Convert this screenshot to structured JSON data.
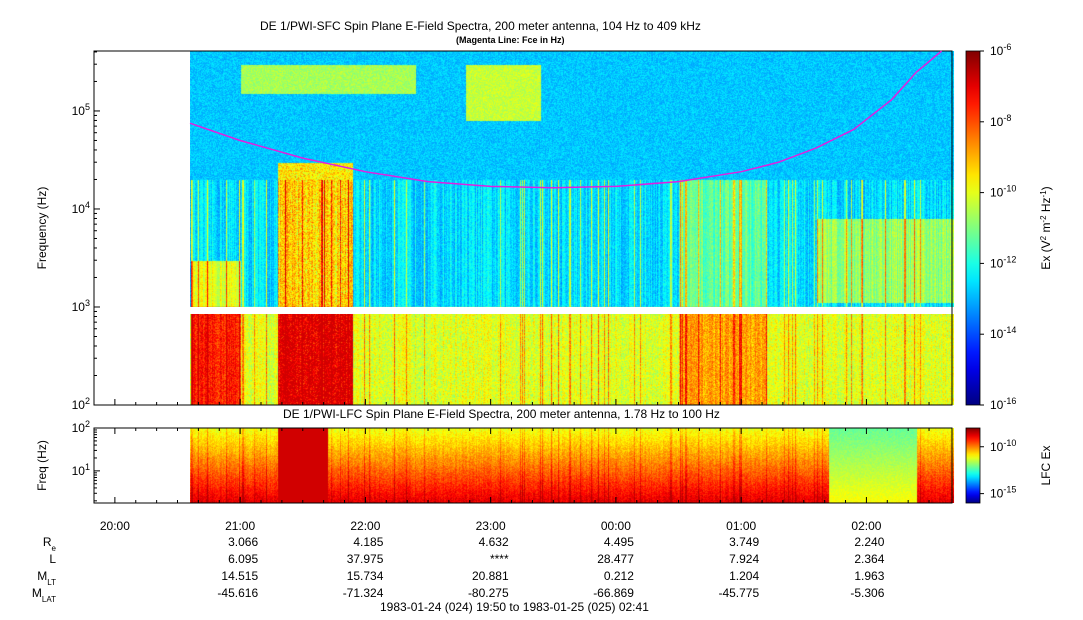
{
  "chart_data": [
    {
      "type": "heatmap",
      "title": "DE 1/PWI-SFC  Spin Plane E-Field Spectra, 200 meter antenna, 104 Hz to 409 kHz",
      "subtitle": "(Magenta Line: Fce in Hz)",
      "ylabel": "Frequency (Hz)",
      "yscale": "log",
      "ylim": [
        100,
        409000
      ],
      "yticks": [
        {
          "v": 100,
          "label": "10",
          "exp": "2"
        },
        {
          "v": 1000,
          "label": "10",
          "exp": "3"
        },
        {
          "v": 10000,
          "label": "10",
          "exp": "4"
        },
        {
          "v": 100000,
          "label": "10",
          "exp": "5"
        }
      ],
      "colorbar": {
        "label": "Ex (V",
        "label_mid": " m",
        "label_end": " Hz",
        "label_close": ")",
        "scale": "log",
        "range": [
          1e-16,
          1e-06
        ],
        "ticks": [
          {
            "v": 1e-06,
            "label": "10",
            "exp": "-6"
          },
          {
            "v": 1e-08,
            "label": "10",
            "exp": "-8"
          },
          {
            "v": 1e-10,
            "label": "10",
            "exp": "-10"
          },
          {
            "v": 1e-12,
            "label": "10",
            "exp": "-12"
          },
          {
            "v": 1e-14,
            "label": "10",
            "exp": "-14"
          },
          {
            "v": 1e-16,
            "label": "10",
            "exp": "-16"
          }
        ]
      },
      "overlay_line": {
        "color": "#e020e0",
        "x_hours": [
          20.6,
          21.0,
          21.5,
          22.0,
          22.5,
          23.0,
          23.5,
          24.0,
          24.5,
          25.0,
          25.3,
          25.6,
          25.9,
          26.2,
          26.4,
          26.6
        ],
        "y_hz": [
          75000,
          50000,
          33000,
          24000,
          19000,
          17000,
          16500,
          17000,
          19000,
          24000,
          30000,
          42000,
          65000,
          130000,
          250000,
          409000
        ]
      },
      "data_start_hours": 20.6,
      "data_end_hours": 26.7
    },
    {
      "type": "heatmap",
      "title": "DE 1/PWI-LFC  Spin Plane E-Field Spectra, 200 meter antenna, 1.78 Hz to 100 Hz",
      "ylabel": "Freq (Hz)",
      "yscale": "log",
      "ylim": [
        1.78,
        100
      ],
      "yticks": [
        {
          "v": 10,
          "label": "10",
          "exp": "1"
        },
        {
          "v": 100,
          "label": "10",
          "exp": "2"
        }
      ],
      "colorbar": {
        "label": "LFC Ex",
        "scale": "log",
        "range": [
          1e-16,
          1e-08
        ],
        "ticks": [
          {
            "v": 1e-10,
            "label": "10",
            "exp": "-10"
          },
          {
            "v": 1e-15,
            "label": "10",
            "exp": "-15"
          }
        ]
      }
    }
  ],
  "xaxis": {
    "xlim_hours": [
      19.8333,
      26.6833
    ],
    "ticks": [
      {
        "h": 20,
        "label": "20:00"
      },
      {
        "h": 21,
        "label": "21:00"
      },
      {
        "h": 22,
        "label": "22:00"
      },
      {
        "h": 23,
        "label": "23:00"
      },
      {
        "h": 24,
        "label": "00:00"
      },
      {
        "h": 25,
        "label": "01:00"
      },
      {
        "h": 26,
        "label": "02:00"
      }
    ]
  },
  "ephemeris": {
    "rows": [
      {
        "name": "R",
        "sub": "e",
        "values": [
          "3.066",
          "4.185",
          "4.632",
          "4.495",
          "3.749",
          "2.240"
        ]
      },
      {
        "name": "L",
        "sub": "",
        "values": [
          "6.095",
          "37.975",
          "****",
          "28.477",
          "7.924",
          "2.364"
        ]
      },
      {
        "name": "M",
        "sub": "LT",
        "values": [
          "14.515",
          "15.734",
          "20.881",
          "0.212",
          "1.204",
          "1.963"
        ]
      },
      {
        "name": "M",
        "sub": "LAT",
        "values": [
          "-45.616",
          "-71.324",
          "-80.275",
          "-66.869",
          "-45.775",
          "-5.306"
        ]
      }
    ],
    "column_hours": [
      21,
      22,
      23,
      24,
      25,
      26
    ]
  },
  "time_range": "1983-01-24 (024) 19:50 to 1983-01-25 (025) 02:41"
}
